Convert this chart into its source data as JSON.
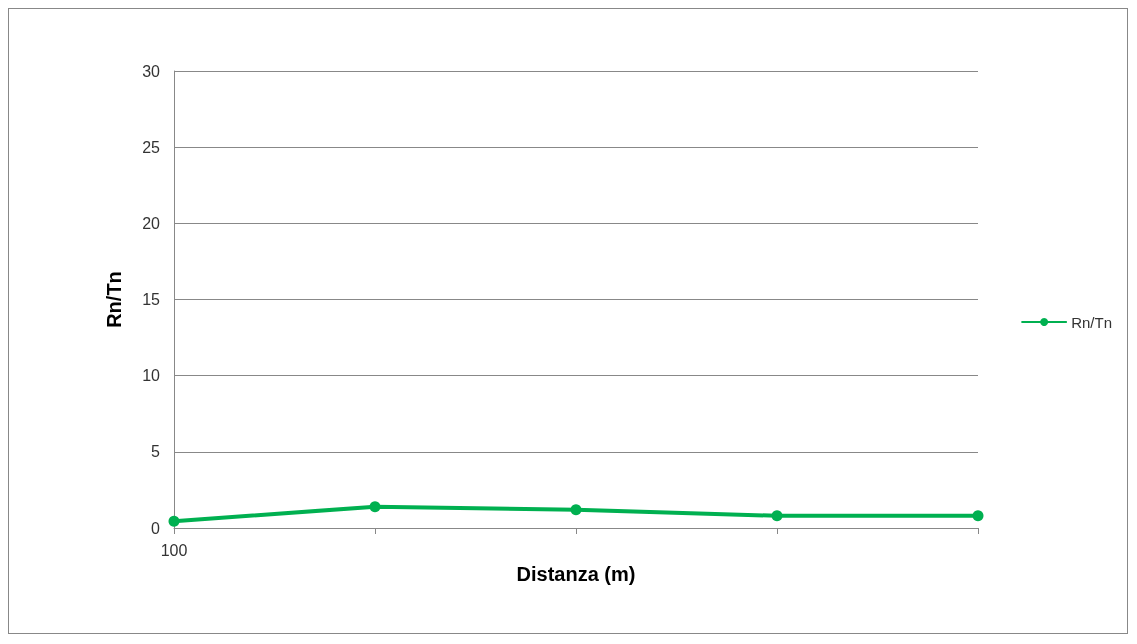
{
  "chart_data": {
    "type": "line",
    "xlabel": "Distanza (m)",
    "ylabel": "Rn/Tn",
    "categories": [
      "100",
      null,
      null,
      null,
      null
    ],
    "series": [
      {
        "name": "Rn/Tn",
        "color": "#00b050",
        "values": [
          0.45,
          1.4,
          1.2,
          0.8,
          0.8
        ]
      }
    ],
    "ylim": [
      0,
      30
    ],
    "yticks": [
      0,
      5,
      10,
      15,
      20,
      25,
      30
    ],
    "grid": "y",
    "legend": "right",
    "marker": "circle",
    "line_style": "solid"
  }
}
